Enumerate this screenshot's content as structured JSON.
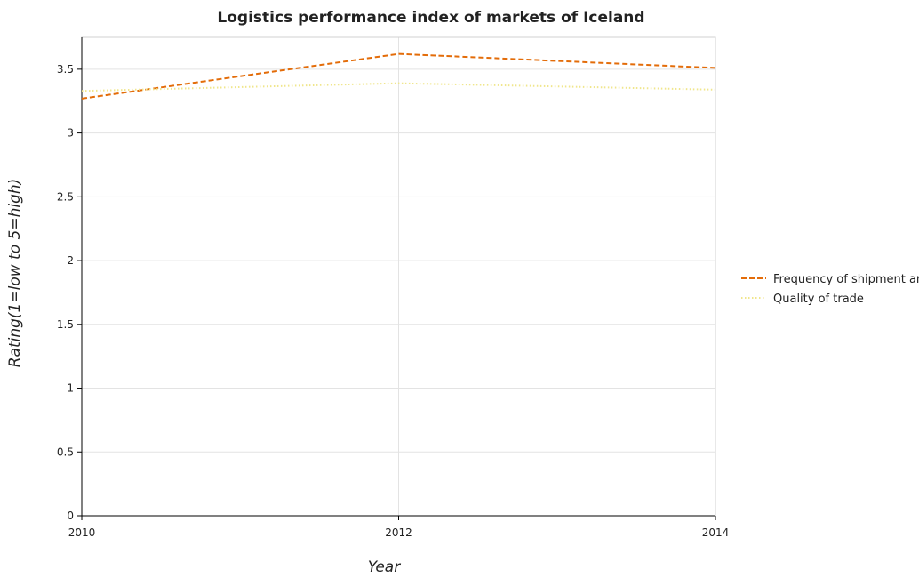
{
  "chart_data": {
    "type": "line",
    "title": "Logistics performance index of markets of Iceland",
    "xlabel": "Year",
    "ylabel": "Rating(1=low to 5=high)",
    "categories": [
      "2010",
      "2012",
      "2014"
    ],
    "ylim": [
      0,
      3.75
    ],
    "yticks": [
      0,
      0.5,
      1,
      1.5,
      2,
      2.5,
      3,
      3.5
    ],
    "ytick_labels": [
      "0",
      "0.5",
      "1",
      "1.5",
      "2",
      "2.5",
      "3",
      "3.5"
    ],
    "grid": true,
    "legend_position": "right",
    "series": [
      {
        "name": "Frequency of shipment arrival",
        "values": [
          3.27,
          3.62,
          3.51
        ],
        "color": "#e36c09",
        "style": "dashed"
      },
      {
        "name": "Quality of trade",
        "values": [
          3.33,
          3.39,
          3.34
        ],
        "color": "#f0e68c",
        "style": "dotted"
      }
    ]
  }
}
